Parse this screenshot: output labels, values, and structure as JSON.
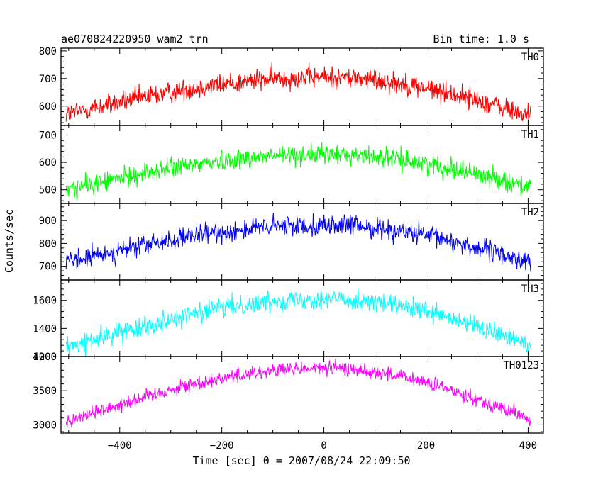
{
  "header": {
    "title": "ae070824220950_wam2_trn",
    "bin_time": "Bin time: 1.0 s"
  },
  "chart_data": {
    "type": "line",
    "xlabel": "Time [sec] 0 = 2007/08/24 22:09:50",
    "ylabel": "Counts/sec",
    "xlim": [
      -515,
      430
    ],
    "x_ticks": [
      -400,
      -200,
      0,
      200,
      400
    ],
    "x_range": [
      -505,
      405
    ],
    "grid": false,
    "panels": [
      {
        "name": "TH0",
        "color": "#ff0000",
        "ylim": [
          530,
          810
        ],
        "yticks": [
          600,
          700,
          800
        ],
        "profile": {
          "start": 570,
          "peak": 705,
          "end": 565,
          "noise": 28
        }
      },
      {
        "name": "TH1",
        "color": "#00ff00",
        "ylim": [
          450,
          735
        ],
        "yticks": [
          500,
          600,
          700
        ],
        "profile": {
          "start": 500,
          "peak": 630,
          "end": 510,
          "noise": 26
        }
      },
      {
        "name": "TH2",
        "color": "#0000ff",
        "ylim": [
          640,
          975
        ],
        "yticks": [
          700,
          800,
          900
        ],
        "profile": {
          "start": 715,
          "peak": 880,
          "end": 715,
          "noise": 32
        }
      },
      {
        "name": "TH3",
        "color": "#00ffff",
        "ylim": [
          1200,
          1745
        ],
        "yticks": [
          1200,
          1400,
          1600
        ],
        "profile": {
          "start": 1260,
          "peak": 1610,
          "end": 1280,
          "noise": 50
        }
      },
      {
        "name": "TH0123",
        "color": "#ff00ff",
        "ylim": [
          2880,
          4000
        ],
        "yticks": [
          3000,
          3500,
          4000
        ],
        "profile": {
          "start": 3050,
          "peak": 3830,
          "end": 3080,
          "noise": 75
        }
      }
    ]
  }
}
